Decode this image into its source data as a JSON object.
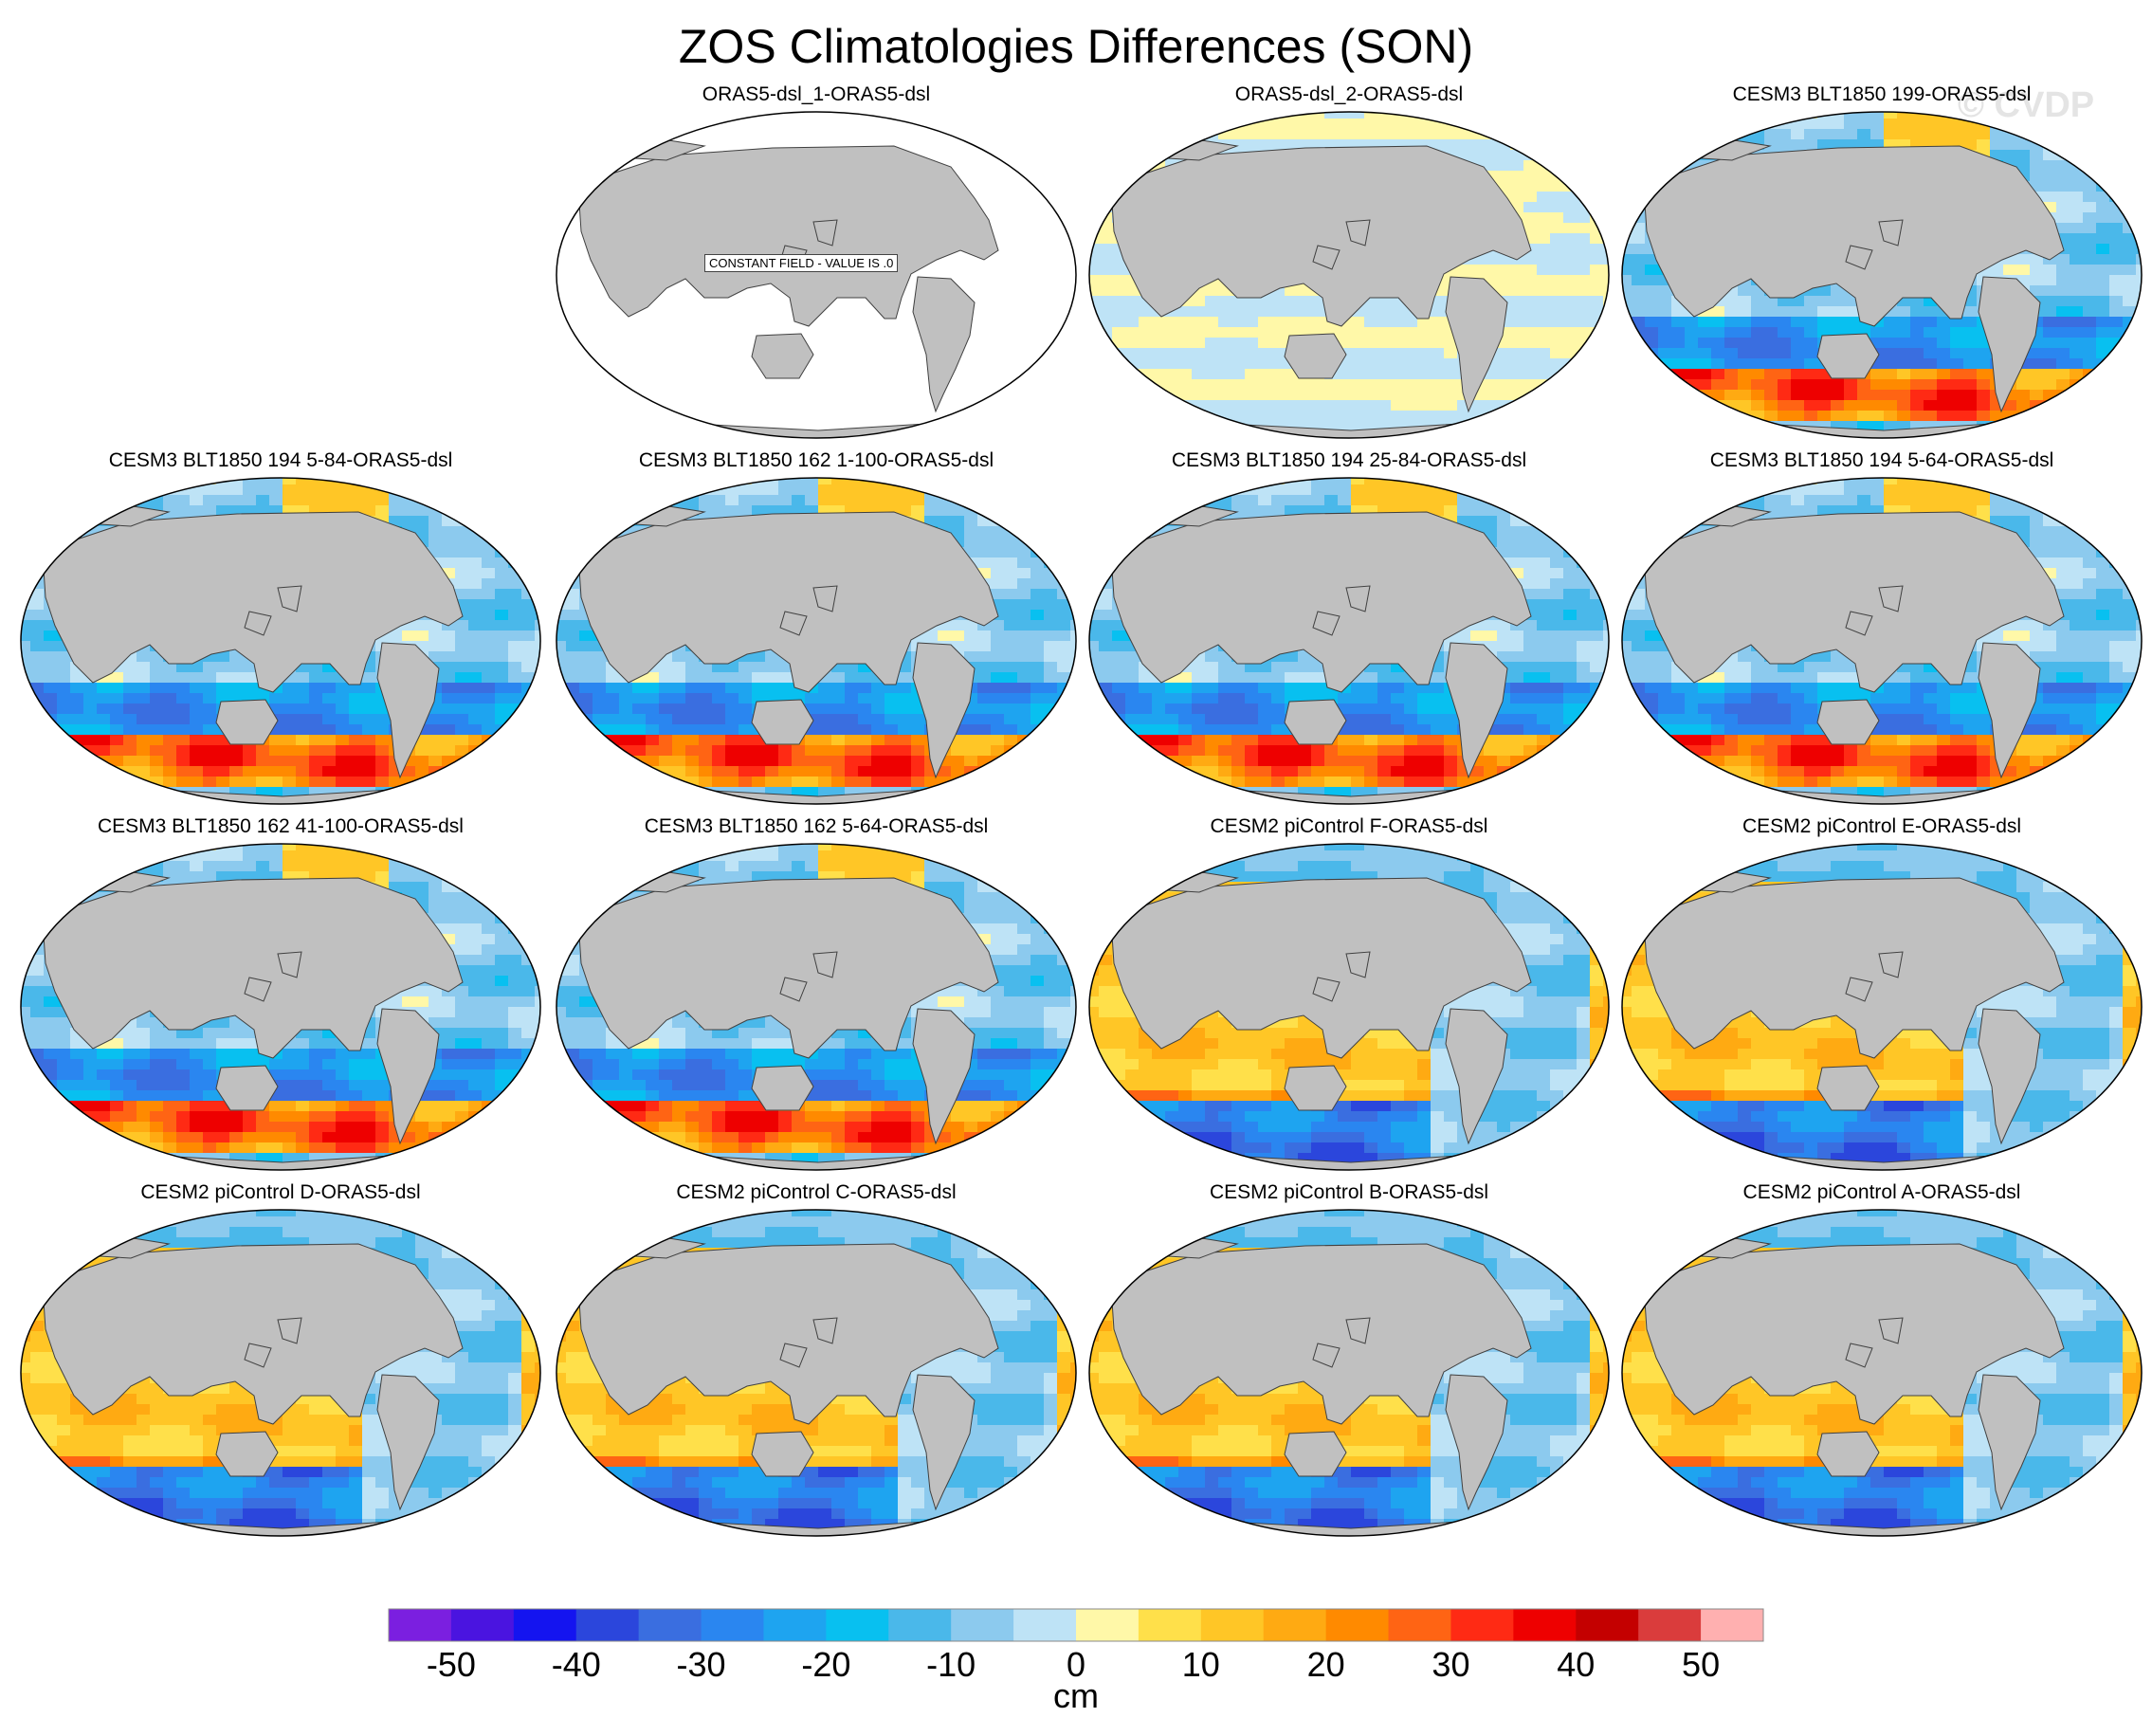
{
  "title": "ZOS Climatologies Differences (SON)",
  "watermark": "© CVDP",
  "constant_field_label": "CONSTANT FIELD - VALUE IS .0",
  "colorbar": {
    "units": "cm",
    "tick_labels": [
      "-50",
      "-40",
      "-30",
      "-20",
      "-10",
      "0",
      "10",
      "20",
      "30",
      "40",
      "50"
    ],
    "tick_values": [
      -50,
      -40,
      -30,
      -20,
      -10,
      0,
      10,
      20,
      30,
      40,
      50
    ],
    "level_bounds": [
      -55,
      55
    ],
    "colors": [
      "#7b1fe0",
      "#4a14e0",
      "#1414f0",
      "#2b46dc",
      "#3a6ee0",
      "#2a86f0",
      "#1ea4f0",
      "#08c0f0",
      "#4ab8ea",
      "#8ccaee",
      "#bee3f6",
      "#fff8a8",
      "#ffe04a",
      "#ffc626",
      "#ffaa12",
      "#ff8a00",
      "#ff6414",
      "#ff2a14",
      "#ee0000",
      "#c40000",
      "#da3c3c",
      "#ffb0b0"
    ]
  },
  "panels": [
    {
      "title": "ORAS5-dsl_1-ORAS5-dsl",
      "pattern": "constant"
    },
    {
      "title": "ORAS5-dsl_2-ORAS5-dsl",
      "pattern": "near-zero"
    },
    {
      "title": "CESM3 BLT1850 199-ORAS5-dsl",
      "pattern": "cesm3"
    },
    {
      "title": "CESM3 BLT1850 194 5-84-ORAS5-dsl",
      "pattern": "cesm3"
    },
    {
      "title": "CESM3 BLT1850 162 1-100-ORAS5-dsl",
      "pattern": "cesm3"
    },
    {
      "title": "CESM3 BLT1850 194 25-84-ORAS5-dsl",
      "pattern": "cesm3"
    },
    {
      "title": "CESM3 BLT1850 194 5-64-ORAS5-dsl",
      "pattern": "cesm3"
    },
    {
      "title": "CESM3 BLT1850 162 41-100-ORAS5-dsl",
      "pattern": "cesm3"
    },
    {
      "title": "CESM3 BLT1850 162 5-64-ORAS5-dsl",
      "pattern": "cesm3"
    },
    {
      "title": "CESM2 piControl F-ORAS5-dsl",
      "pattern": "cesm2"
    },
    {
      "title": "CESM2 piControl E-ORAS5-dsl",
      "pattern": "cesm2"
    },
    {
      "title": "CESM2 piControl D-ORAS5-dsl",
      "pattern": "cesm2"
    },
    {
      "title": "CESM2 piControl C-ORAS5-dsl",
      "pattern": "cesm2"
    },
    {
      "title": "CESM2 piControl B-ORAS5-dsl",
      "pattern": "cesm2"
    },
    {
      "title": "CESM2 piControl A-ORAS5-dsl",
      "pattern": "cesm2"
    }
  ]
}
